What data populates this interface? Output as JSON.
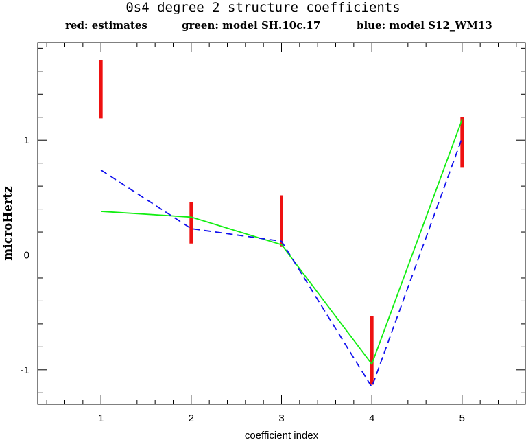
{
  "chart_data": {
    "type": "line",
    "title": "0s4 degree 2 structure coefficients",
    "xlabel": "coefficient index",
    "ylabel": "microHertz",
    "xlim": [
      0.3,
      5.7
    ],
    "ylim": [
      -1.3,
      1.85
    ],
    "x_ticks": [
      1,
      2,
      3,
      4,
      5
    ],
    "y_ticks": [
      -1,
      0,
      1
    ],
    "legend": [
      {
        "text": "red: estimates",
        "color": "#ee1111"
      },
      {
        "text": "green: model SH.10c.17",
        "color": "#11ee11"
      },
      {
        "text": "blue: model S12_WM13",
        "color": "#1111ee"
      }
    ],
    "series": [
      {
        "kind": "errorbar",
        "color": "#ee1111",
        "x": [
          1,
          2,
          3,
          4,
          5
        ],
        "low": [
          1.19,
          0.1,
          0.07,
          -1.13,
          0.76
        ],
        "high": [
          1.7,
          0.46,
          0.52,
          -0.53,
          1.2
        ]
      },
      {
        "kind": "line",
        "color": "#11ee11",
        "dash": "solid",
        "x": [
          1,
          2,
          3,
          4,
          5
        ],
        "values": [
          0.38,
          0.33,
          0.09,
          -0.95,
          1.18
        ]
      },
      {
        "kind": "line",
        "color": "#1111ee",
        "dash": "dashed",
        "x": [
          1,
          2,
          3,
          4,
          5
        ],
        "values": [
          0.74,
          0.23,
          0.12,
          -1.15,
          1.02
        ]
      }
    ]
  }
}
